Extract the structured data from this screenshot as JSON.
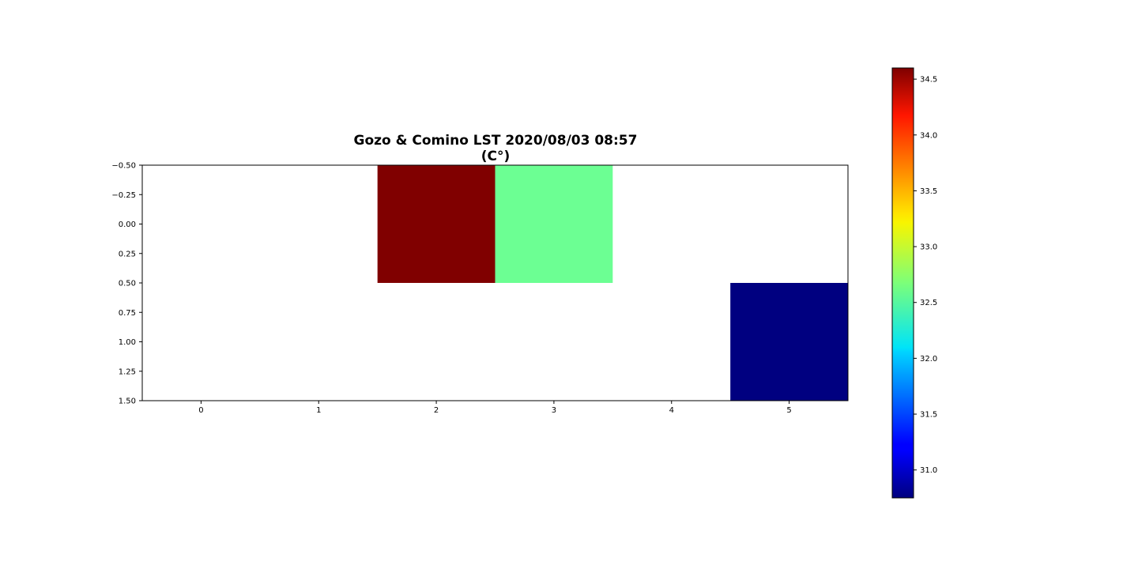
{
  "chart_data": {
    "type": "heatmap",
    "title_line1": "Gozo & Comino LST 2020/08/03 08:57",
    "title_line2": "(C°)",
    "xlabel": "",
    "ylabel": "",
    "x_ticks": [
      "0",
      "1",
      "2",
      "3",
      "4",
      "5"
    ],
    "y_ticks": [
      "−0.50",
      "−0.25",
      "0.00",
      "0.25",
      "0.50",
      "0.75",
      "1.00",
      "1.25",
      "1.50"
    ],
    "xlim": [
      -0.5,
      5.5
    ],
    "ylim": [
      1.5,
      -0.5
    ],
    "y_inverted": true,
    "rows": 2,
    "cols": 6,
    "values": [
      [
        null,
        null,
        34.6,
        32.6,
        null,
        null
      ],
      [
        null,
        null,
        null,
        null,
        null,
        30.75
      ]
    ],
    "colormap": "jet",
    "colorbar": {
      "vmin": 30.75,
      "vmax": 34.6,
      "ticks": [
        31.0,
        31.5,
        32.0,
        32.5,
        33.0,
        33.5,
        34.0,
        34.5
      ],
      "tick_labels": [
        "31.0",
        "31.5",
        "32.0",
        "32.5",
        "33.0",
        "33.5",
        "34.0",
        "34.5"
      ]
    },
    "grid": false
  }
}
